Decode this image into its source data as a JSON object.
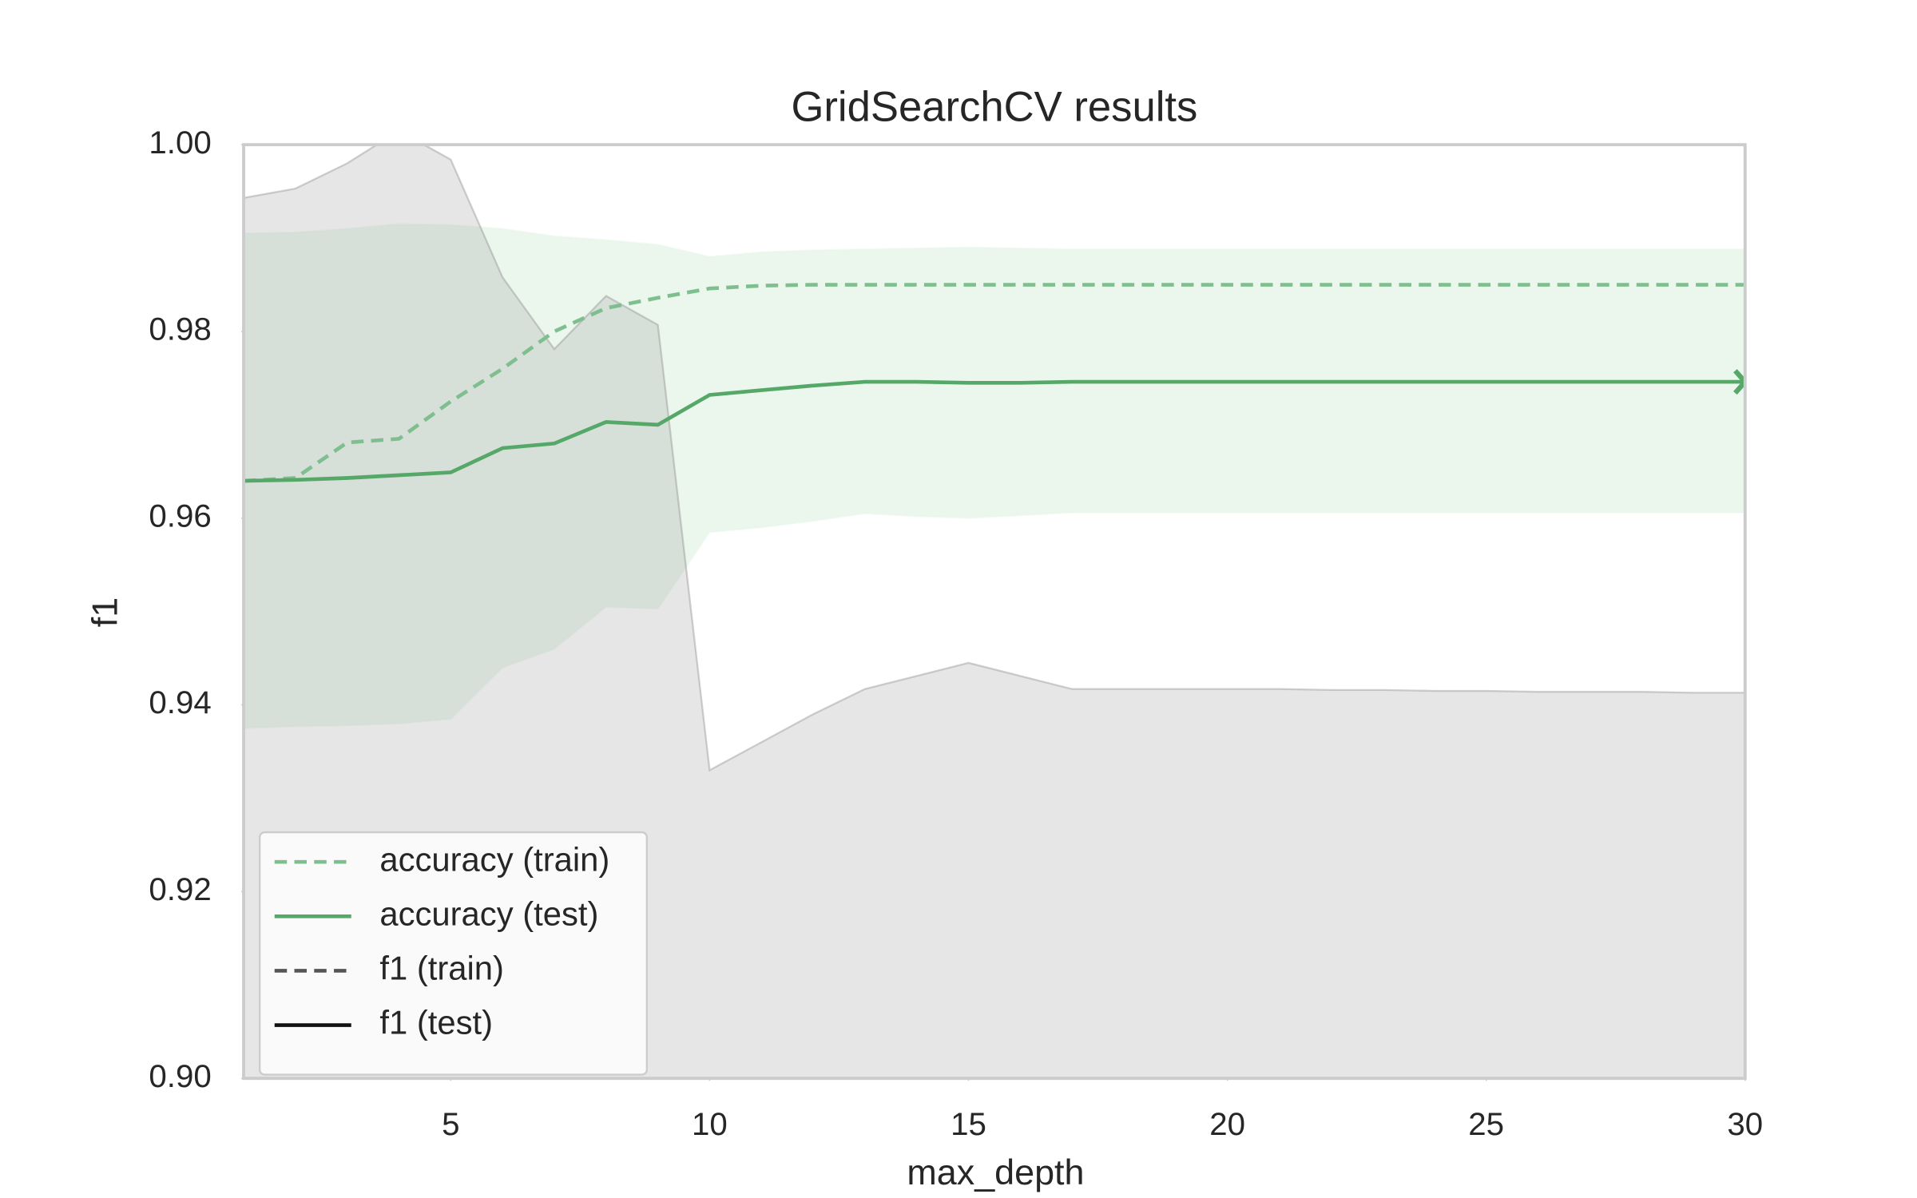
{
  "chart_data": {
    "type": "line",
    "title": "GridSearchCV results",
    "xlabel": "max_depth",
    "ylabel": "f1",
    "x": [
      1,
      2,
      3,
      4,
      5,
      6,
      7,
      8,
      9,
      10,
      11,
      12,
      13,
      14,
      15,
      16,
      17,
      18,
      19,
      20,
      21,
      22,
      23,
      24,
      25,
      26,
      27,
      28,
      29,
      30
    ],
    "xlim": [
      1,
      30
    ],
    "xticks": [
      5,
      10,
      15,
      20,
      25,
      30
    ],
    "ylim": [
      0.9,
      1.0
    ],
    "yticks": [
      {
        "value": 0.9,
        "label": "0.90"
      },
      {
        "value": 0.92,
        "label": "0.92"
      },
      {
        "value": 0.94,
        "label": "0.94"
      },
      {
        "value": 0.96,
        "label": "0.96"
      },
      {
        "value": 0.98,
        "label": "0.98"
      },
      {
        "value": 1.0,
        "label": "1.00"
      }
    ],
    "grid": false,
    "legend": "lower left",
    "series": [
      {
        "name": "accuracy (train)",
        "color": "#7fbf8f",
        "dash": true,
        "values": [
          0.964,
          0.9643,
          0.9681,
          0.9685,
          0.9725,
          0.976,
          0.98,
          0.9825,
          0.9836,
          0.9846,
          0.9849,
          0.985,
          0.985,
          0.985,
          0.985,
          0.985,
          0.985,
          0.985,
          0.985,
          0.985,
          0.985,
          0.985,
          0.985,
          0.985,
          0.985,
          0.985,
          0.985,
          0.985,
          0.985,
          0.985
        ]
      },
      {
        "name": "accuracy (test)",
        "color": "#55a868",
        "dash": false,
        "values": [
          0.964,
          0.9641,
          0.9643,
          0.9646,
          0.9649,
          0.9675,
          0.968,
          0.9703,
          0.97,
          0.9732,
          0.9737,
          0.9742,
          0.9746,
          0.9746,
          0.9745,
          0.9745,
          0.9746,
          0.9746,
          0.9746,
          0.9746,
          0.9746,
          0.9746,
          0.9746,
          0.9746,
          0.9746,
          0.9746,
          0.9746,
          0.9746,
          0.9746,
          0.9746
        ],
        "band": {
          "color": "#e8f4ea",
          "upper": [
            0.9905,
            0.9906,
            0.991,
            0.9915,
            0.9914,
            0.991,
            0.9902,
            0.9898,
            0.9893,
            0.988,
            0.9885,
            0.9887,
            0.9888,
            0.9889,
            0.989,
            0.9889,
            0.9888,
            0.9888,
            0.9888,
            0.9888,
            0.9888,
            0.9888,
            0.9888,
            0.9888,
            0.9888,
            0.9888,
            0.9888,
            0.9888,
            0.9888,
            0.9888
          ],
          "lower": [
            0.9375,
            0.9377,
            0.9378,
            0.938,
            0.9385,
            0.944,
            0.946,
            0.9505,
            0.9503,
            0.9585,
            0.959,
            0.9597,
            0.9605,
            0.9602,
            0.96,
            0.9603,
            0.9606,
            0.9606,
            0.9606,
            0.9606,
            0.9606,
            0.9606,
            0.9606,
            0.9606,
            0.9606,
            0.9606,
            0.9606,
            0.9606,
            0.9606,
            0.9606
          ]
        }
      },
      {
        "name": "f1 (train)",
        "color": "#555555",
        "dash": true,
        "values": [
          null,
          null,
          null,
          null,
          null,
          null,
          null,
          null,
          null,
          null,
          null,
          null,
          null,
          null,
          null,
          null,
          null,
          null,
          null,
          null,
          null,
          null,
          null,
          null,
          null,
          null,
          null,
          null,
          null,
          null
        ]
      },
      {
        "name": "f1 (test)",
        "color": "#111111",
        "dash": false,
        "values": [
          null,
          null,
          null,
          null,
          null,
          null,
          null,
          null,
          null,
          null,
          null,
          null,
          null,
          null,
          null,
          null,
          null,
          null,
          null,
          null,
          null,
          null,
          null,
          null,
          null,
          null,
          null,
          null,
          null,
          null
        ],
        "band": {
          "color": "#8c8c8c",
          "upper": [
            0.9943,
            0.9953,
            0.998,
            1.0015,
            0.9984,
            0.9858,
            0.9781,
            0.9838,
            0.9807,
            0.933,
            0.936,
            0.939,
            0.9417,
            0.9431,
            0.9445,
            0.9431,
            0.9417,
            0.9417,
            0.9417,
            0.9417,
            0.9417,
            0.9416,
            0.9416,
            0.9415,
            0.9415,
            0.9414,
            0.9414,
            0.9414,
            0.9413,
            0.9413
          ]
        }
      }
    ]
  }
}
